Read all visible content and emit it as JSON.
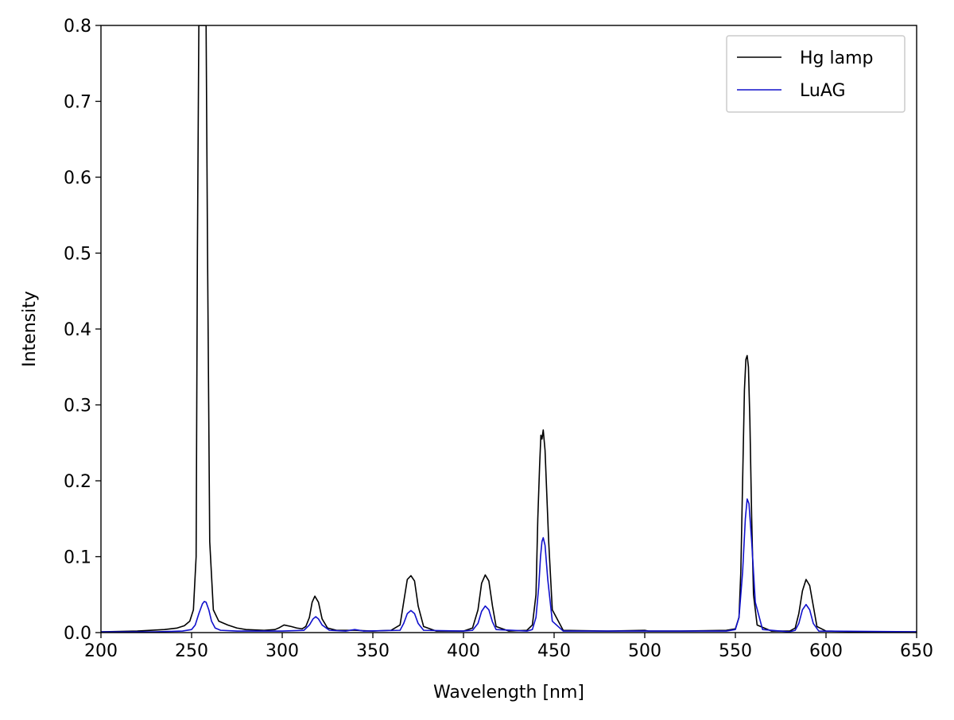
{
  "chart_data": {
    "type": "line",
    "title": "",
    "xlabel": "Wavelength [nm]",
    "ylabel": "Intensity",
    "xlim": [
      200,
      650
    ],
    "ylim": [
      0,
      0.8
    ],
    "xticks": [
      200,
      250,
      300,
      350,
      400,
      450,
      500,
      550,
      600,
      650
    ],
    "xtick_labels": [
      "200",
      "250",
      "300",
      "350",
      "400",
      "450",
      "500",
      "550",
      "600",
      "650"
    ],
    "yticks": [
      0.0,
      0.1,
      0.2,
      0.3,
      0.4,
      0.5,
      0.6,
      0.7,
      0.8
    ],
    "ytick_labels": [
      "0.0",
      "0.1",
      "0.2",
      "0.3",
      "0.4",
      "0.5",
      "0.6",
      "0.7",
      "0.8"
    ],
    "grid": false,
    "legend_position": "top-right",
    "series": [
      {
        "name": "Hg lamp",
        "color": "#000000",
        "x": [
          200,
          220,
          235,
          242,
          246,
          249,
          251,
          252.5,
          253.2,
          254,
          257,
          258,
          258.8,
          260,
          262,
          265,
          270,
          275,
          280,
          290,
          296,
          298,
          301,
          305,
          308,
          311,
          313,
          315,
          316.5,
          318,
          320,
          322,
          325,
          330,
          340,
          350,
          360,
          365,
          367,
          369,
          371,
          373,
          375,
          378,
          385,
          400,
          405,
          408,
          410,
          412,
          414,
          416,
          418,
          425,
          435,
          438,
          440,
          441,
          442,
          442.7,
          443.3,
          444,
          445,
          447,
          449,
          455,
          480,
          500,
          502,
          520,
          545,
          550,
          552,
          553,
          554,
          555,
          555.8,
          556.5,
          557.2,
          558,
          559,
          560,
          562,
          570,
          580,
          583,
          585,
          587,
          589,
          591,
          593,
          595,
          600,
          620,
          650
        ],
        "y": [
          0.001,
          0.002,
          0.004,
          0.006,
          0.009,
          0.015,
          0.03,
          0.1,
          0.5,
          0.8,
          0.8,
          0.8,
          0.5,
          0.12,
          0.03,
          0.015,
          0.01,
          0.006,
          0.004,
          0.003,
          0.004,
          0.006,
          0.01,
          0.008,
          0.006,
          0.005,
          0.008,
          0.02,
          0.04,
          0.048,
          0.04,
          0.018,
          0.006,
          0.003,
          0.003,
          0.002,
          0.003,
          0.01,
          0.04,
          0.07,
          0.075,
          0.068,
          0.035,
          0.008,
          0.002,
          0.002,
          0.006,
          0.03,
          0.065,
          0.076,
          0.068,
          0.035,
          0.008,
          0.002,
          0.003,
          0.01,
          0.05,
          0.15,
          0.22,
          0.26,
          0.255,
          0.267,
          0.24,
          0.12,
          0.03,
          0.003,
          0.002,
          0.003,
          0.002,
          0.002,
          0.003,
          0.005,
          0.02,
          0.08,
          0.2,
          0.32,
          0.36,
          0.365,
          0.35,
          0.28,
          0.15,
          0.05,
          0.01,
          0.002,
          0.002,
          0.006,
          0.025,
          0.055,
          0.07,
          0.062,
          0.035,
          0.008,
          0.002,
          0.001,
          0.001
        ]
      },
      {
        "name": "LuAG",
        "color": "#1010cc",
        "x": [
          200,
          230,
          245,
          250,
          252,
          254,
          256,
          257,
          258,
          259.5,
          261,
          263,
          266,
          275,
          300,
          312,
          315,
          317,
          318.5,
          320,
          322,
          326,
          335,
          340,
          345,
          365,
          367,
          369,
          371,
          373,
          375,
          378,
          400,
          405,
          408,
          410,
          412,
          414,
          416,
          418,
          435,
          438,
          440,
          441.5,
          442.5,
          443.3,
          444,
          445,
          446.5,
          449,
          455,
          500,
          545,
          550,
          552,
          554,
          555.5,
          556.5,
          557.5,
          559,
          561,
          565,
          580,
          583,
          585,
          587,
          589,
          591,
          593,
          596,
          650
        ],
        "y": [
          0.001,
          0.001,
          0.002,
          0.004,
          0.01,
          0.025,
          0.038,
          0.041,
          0.04,
          0.03,
          0.015,
          0.006,
          0.003,
          0.002,
          0.002,
          0.003,
          0.01,
          0.018,
          0.021,
          0.018,
          0.01,
          0.003,
          0.002,
          0.004,
          0.002,
          0.003,
          0.012,
          0.025,
          0.029,
          0.025,
          0.012,
          0.003,
          0.002,
          0.003,
          0.012,
          0.028,
          0.035,
          0.03,
          0.014,
          0.004,
          0.002,
          0.004,
          0.02,
          0.06,
          0.1,
          0.12,
          0.125,
          0.115,
          0.07,
          0.015,
          0.002,
          0.002,
          0.002,
          0.004,
          0.02,
          0.08,
          0.15,
          0.176,
          0.17,
          0.12,
          0.04,
          0.004,
          0.001,
          0.003,
          0.012,
          0.03,
          0.037,
          0.03,
          0.012,
          0.002,
          0.001
        ]
      }
    ]
  }
}
